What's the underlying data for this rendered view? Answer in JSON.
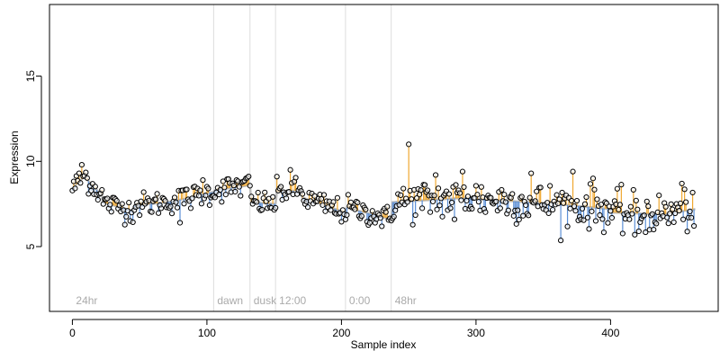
{
  "chart_data": {
    "type": "scatter",
    "title": "",
    "xlabel": "Sample index",
    "ylabel": "Expression",
    "xlim": [
      -17,
      480
    ],
    "ylim": [
      1.2,
      19.2
    ],
    "x_ticks": [
      0,
      100,
      200,
      300,
      400
    ],
    "y_ticks": [
      5,
      10,
      15
    ],
    "grid": false,
    "section_markers": [
      {
        "x": 0,
        "label": "24hr"
      },
      {
        "x": 105,
        "label": "dawn"
      },
      {
        "x": 132,
        "label": "dusk"
      },
      {
        "x": 151,
        "label": "12:00"
      },
      {
        "x": 203,
        "label": "0:00"
      },
      {
        "x": 237,
        "label": "48hr"
      }
    ],
    "colors": {
      "above_trend": "#f0a830",
      "below_trend": "#5b8fd6",
      "trend": "#bcbcbc",
      "point_edge": "#000000",
      "marker_line": "#dddddd"
    },
    "segments": [
      {
        "x0": 0,
        "x1": 10,
        "y0": 8.4,
        "y1": 9.2
      },
      {
        "x0": 10,
        "x1": 22,
        "y0": 9.0,
        "y1": 8.0
      },
      {
        "x0": 22,
        "x1": 45,
        "y0": 7.6,
        "y1": 7.1
      },
      {
        "x0": 45,
        "x1": 70,
        "y0": 7.4,
        "y1": 7.6
      },
      {
        "x0": 70,
        "x1": 90,
        "y0": 7.6,
        "y1": 7.9
      },
      {
        "x0": 90,
        "x1": 105,
        "y0": 8.0,
        "y1": 8.2
      },
      {
        "x0": 105,
        "x1": 132,
        "y0": 8.3,
        "y1": 8.6
      },
      {
        "x0": 132,
        "x1": 151,
        "y0": 7.6,
        "y1": 7.5
      },
      {
        "x0": 151,
        "x1": 170,
        "y0": 8.2,
        "y1": 8.3
      },
      {
        "x0": 170,
        "x1": 203,
        "y0": 7.9,
        "y1": 7.0
      },
      {
        "x0": 203,
        "x1": 237,
        "y0": 7.3,
        "y1": 6.6
      },
      {
        "x0": 237,
        "x1": 300,
        "y0": 7.6,
        "y1": 7.9
      },
      {
        "x0": 300,
        "x1": 360,
        "y0": 7.8,
        "y1": 7.5
      },
      {
        "x0": 360,
        "x1": 400,
        "y0": 7.5,
        "y1": 7.2
      },
      {
        "x0": 400,
        "x1": 440,
        "y0": 7.0,
        "y1": 6.9
      },
      {
        "x0": 440,
        "x1": 463,
        "y0": 6.9,
        "y1": 7.2
      }
    ],
    "spikes": [
      {
        "x": 5,
        "y": 9.3
      },
      {
        "x": 7,
        "y": 9.8
      },
      {
        "x": 80,
        "y": 6.4
      },
      {
        "x": 82,
        "y": 8.3
      },
      {
        "x": 97,
        "y": 8.9
      },
      {
        "x": 122,
        "y": 8.9
      },
      {
        "x": 129,
        "y": 9.0
      },
      {
        "x": 162,
        "y": 9.5
      },
      {
        "x": 250,
        "y": 11.0
      },
      {
        "x": 270,
        "y": 9.2
      },
      {
        "x": 284,
        "y": 6.6
      },
      {
        "x": 290,
        "y": 9.4
      },
      {
        "x": 341,
        "y": 9.3
      },
      {
        "x": 372,
        "y": 9.4
      },
      {
        "x": 378,
        "y": 6.6
      },
      {
        "x": 387,
        "y": 9.0
      },
      {
        "x": 418,
        "y": 5.7
      },
      {
        "x": 421,
        "y": 5.9
      },
      {
        "x": 453,
        "y": 8.7
      }
    ],
    "noise_sd": 0.45,
    "n_points": 463
  }
}
